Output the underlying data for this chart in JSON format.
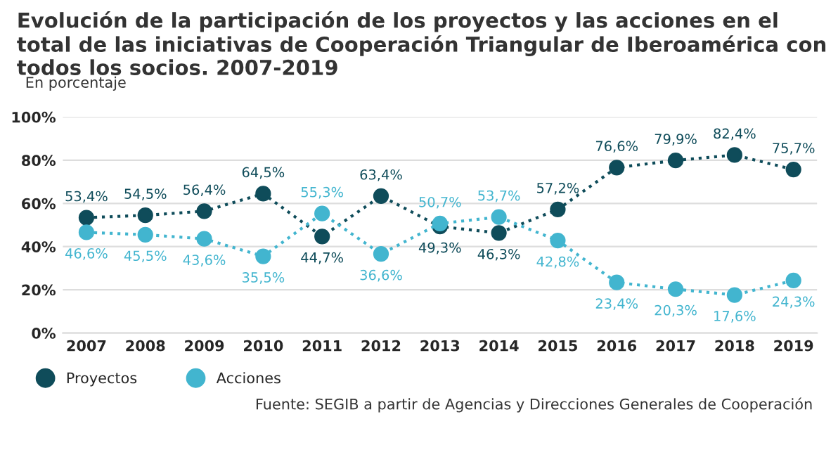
{
  "chart_data": {
    "type": "line",
    "title": "Evolución de la participación de los proyectos y las acciones en el total de las iniciativas de Cooperación Triangular de Iberoamérica con todos los socios. 2007-2019",
    "subtitle": "En porcentaje",
    "categories": [
      "2007",
      "2008",
      "2009",
      "2010",
      "2011",
      "2012",
      "2013",
      "2014",
      "2015",
      "2016",
      "2017",
      "2018",
      "2019"
    ],
    "series": [
      {
        "name": "Proyectos",
        "color": "#0f4c5a",
        "values": [
          53.4,
          54.5,
          56.4,
          64.5,
          44.7,
          63.4,
          49.3,
          46.3,
          57.2,
          76.6,
          79.9,
          82.4,
          75.7
        ],
        "value_labels": [
          "53,4%",
          "54,5%",
          "56,4%",
          "64,5%",
          "44,7%",
          "63,4%",
          "49,3%",
          "46,3%",
          "57,2%",
          "76,6%",
          "79,9%",
          "82,4%",
          "75,7%"
        ]
      },
      {
        "name": "Acciones",
        "color": "#42b5cf",
        "values": [
          46.6,
          45.5,
          43.6,
          35.5,
          55.3,
          36.6,
          50.7,
          53.7,
          42.8,
          23.4,
          20.3,
          17.6,
          24.3
        ],
        "value_labels": [
          "46,6%",
          "45,5%",
          "43,6%",
          "35,5%",
          "55,3%",
          "36,6%",
          "50,7%",
          "53,7%",
          "42,8%",
          "23,4%",
          "20,3%",
          "17,6%",
          "24,3%"
        ]
      }
    ],
    "ylim": [
      0,
      100
    ],
    "yticks": [
      {
        "value": 0,
        "label": "0%"
      },
      {
        "value": 20,
        "label": "20%"
      },
      {
        "value": 40,
        "label": "40%"
      },
      {
        "value": 60,
        "label": "60%"
      },
      {
        "value": 80,
        "label": "80%"
      },
      {
        "value": 100,
        "label": "100%"
      }
    ],
    "grid": "y",
    "marker": "circle",
    "line_style": "dotted",
    "legend": "bottom left",
    "annotations": [
      "Fuente: SEGIB a partir de Agencias y Direcciones Generales de Cooperación"
    ]
  }
}
